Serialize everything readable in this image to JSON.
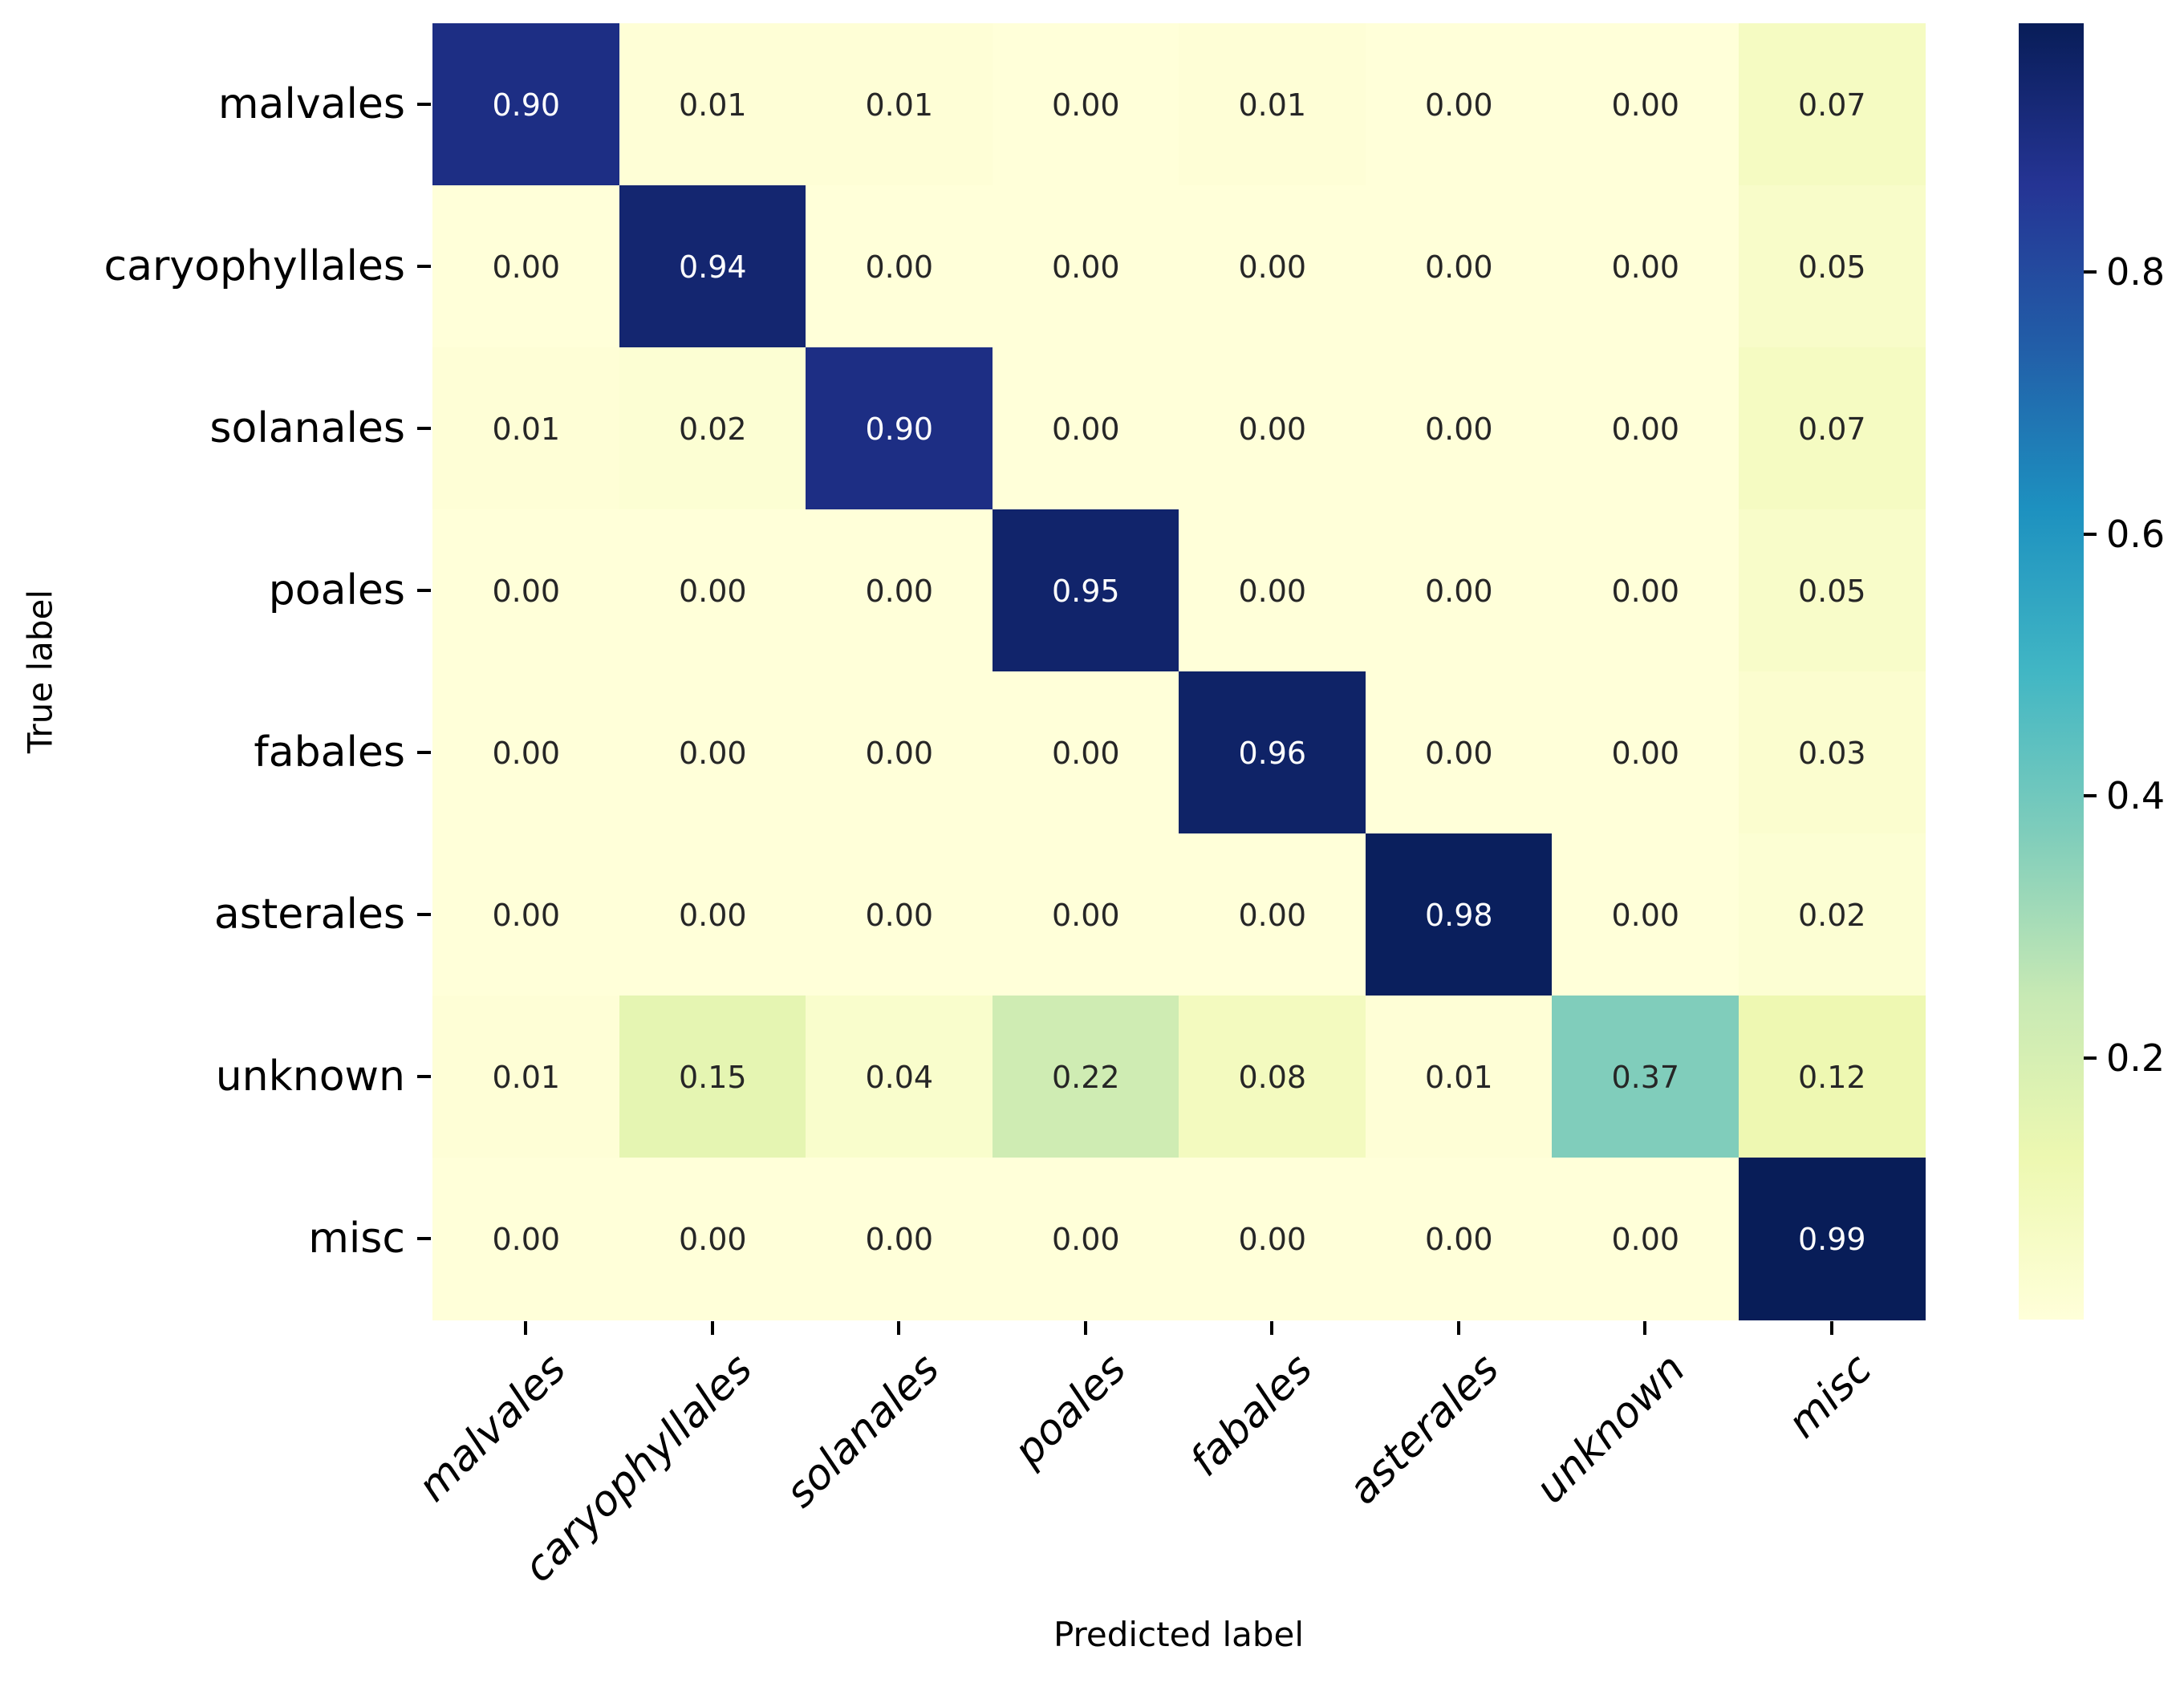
{
  "chart_data": {
    "type": "heatmap",
    "title": "",
    "xlabel": "Predicted label",
    "ylabel": "True label",
    "x_categories": [
      "malvales",
      "caryophyllales",
      "solanales",
      "poales",
      "fabales",
      "asterales",
      "unknown",
      "misc"
    ],
    "y_categories": [
      "malvales",
      "caryophyllales",
      "solanales",
      "poales",
      "fabales",
      "asterales",
      "unknown",
      "misc"
    ],
    "matrix": [
      [
        0.9,
        0.01,
        0.01,
        0.0,
        0.01,
        0.0,
        0.0,
        0.07
      ],
      [
        0.0,
        0.94,
        0.0,
        0.0,
        0.0,
        0.0,
        0.0,
        0.05
      ],
      [
        0.01,
        0.02,
        0.9,
        0.0,
        0.0,
        0.0,
        0.0,
        0.07
      ],
      [
        0.0,
        0.0,
        0.0,
        0.95,
        0.0,
        0.0,
        0.0,
        0.05
      ],
      [
        0.0,
        0.0,
        0.0,
        0.0,
        0.96,
        0.0,
        0.0,
        0.03
      ],
      [
        0.0,
        0.0,
        0.0,
        0.0,
        0.0,
        0.98,
        0.0,
        0.02
      ],
      [
        0.01,
        0.15,
        0.04,
        0.22,
        0.08,
        0.01,
        0.37,
        0.12
      ],
      [
        0.0,
        0.0,
        0.0,
        0.0,
        0.0,
        0.0,
        0.0,
        0.99
      ]
    ],
    "value_decimals": 2,
    "vmin": 0.0,
    "vmax": 0.99,
    "colormap": {
      "name": "YlGnBu",
      "stops": [
        "#ffffd9",
        "#edf8b1",
        "#c7e9b4",
        "#7fcdbb",
        "#41b6c4",
        "#1d91c0",
        "#225ea8",
        "#253494",
        "#081d58"
      ]
    },
    "colorbar": {
      "position": "right",
      "tick_values": [
        0.2,
        0.4,
        0.6,
        0.8
      ],
      "tick_labels": [
        "0.2",
        "0.4",
        "0.6",
        "0.8"
      ]
    },
    "annotation_colors": {
      "dark": "#262626",
      "light": "#ffffff"
    },
    "grid": false,
    "legend_position": "right-colorbar"
  }
}
